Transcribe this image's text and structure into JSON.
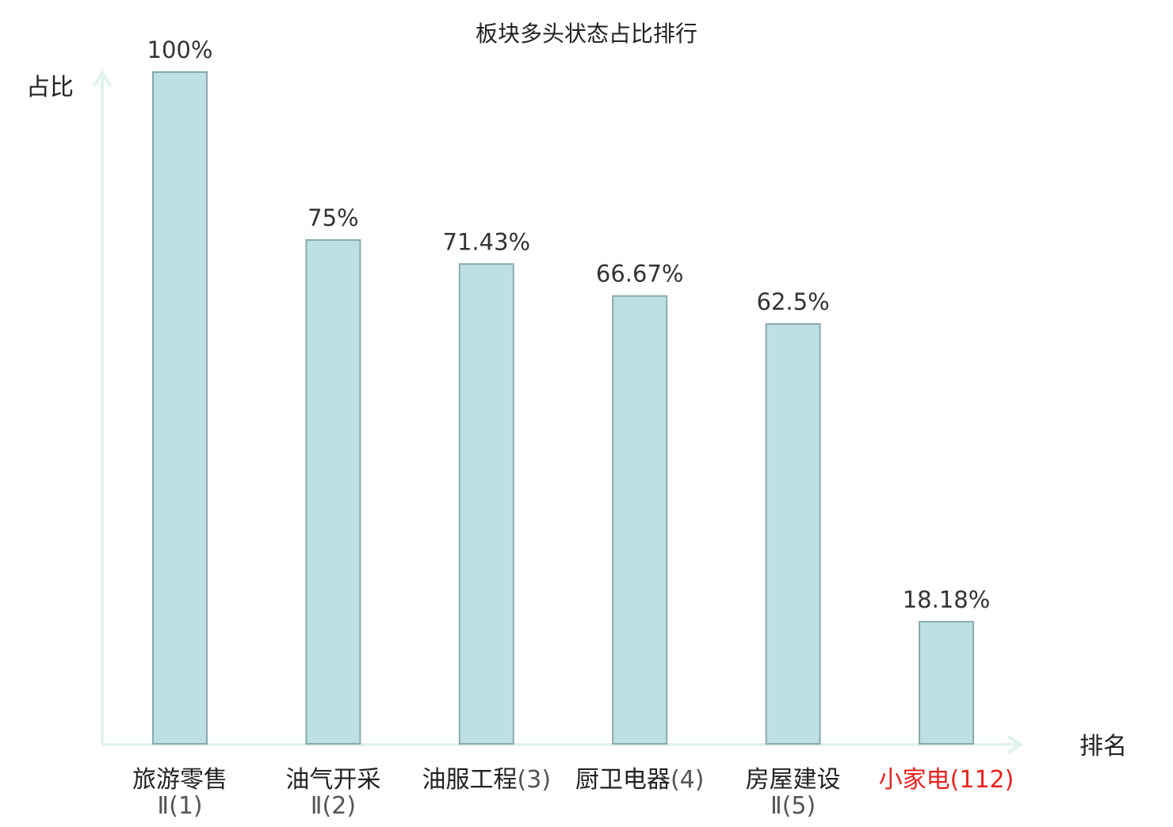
{
  "chart_data": {
    "type": "bar",
    "title": "板块多头状态占比排行",
    "ylabel": "占比",
    "xlabel": "排名",
    "ylim": [
      0,
      100
    ],
    "grid": false,
    "categories": [
      {
        "name": "旅游零售",
        "rank_label": "Ⅱ(1)",
        "value": 100,
        "value_label": "100%",
        "highlight": false
      },
      {
        "name": "油气开采",
        "rank_label": "Ⅱ(2)",
        "value": 75,
        "value_label": "75%",
        "highlight": false
      },
      {
        "name": "油服工程",
        "rank_label": "(3)",
        "value": 71.43,
        "value_label": "71.43%",
        "highlight": false
      },
      {
        "name": "厨卫电器",
        "rank_label": "(4)",
        "value": 66.67,
        "value_label": "66.67%",
        "highlight": false
      },
      {
        "name": "房屋建设",
        "rank_label": "Ⅱ(5)",
        "value": 62.5,
        "value_label": "62.5%",
        "highlight": false
      },
      {
        "name": "小家电",
        "rank_label": "(112)",
        "value": 18.18,
        "value_label": "18.18%",
        "highlight": true
      }
    ],
    "colors": {
      "bar_fill": "#bde0e3",
      "bar_stroke": "#8aaaac",
      "axis": "#e0f2ef",
      "text": "#222222",
      "rank_text": "#555555",
      "highlight": "#e8221e"
    }
  }
}
